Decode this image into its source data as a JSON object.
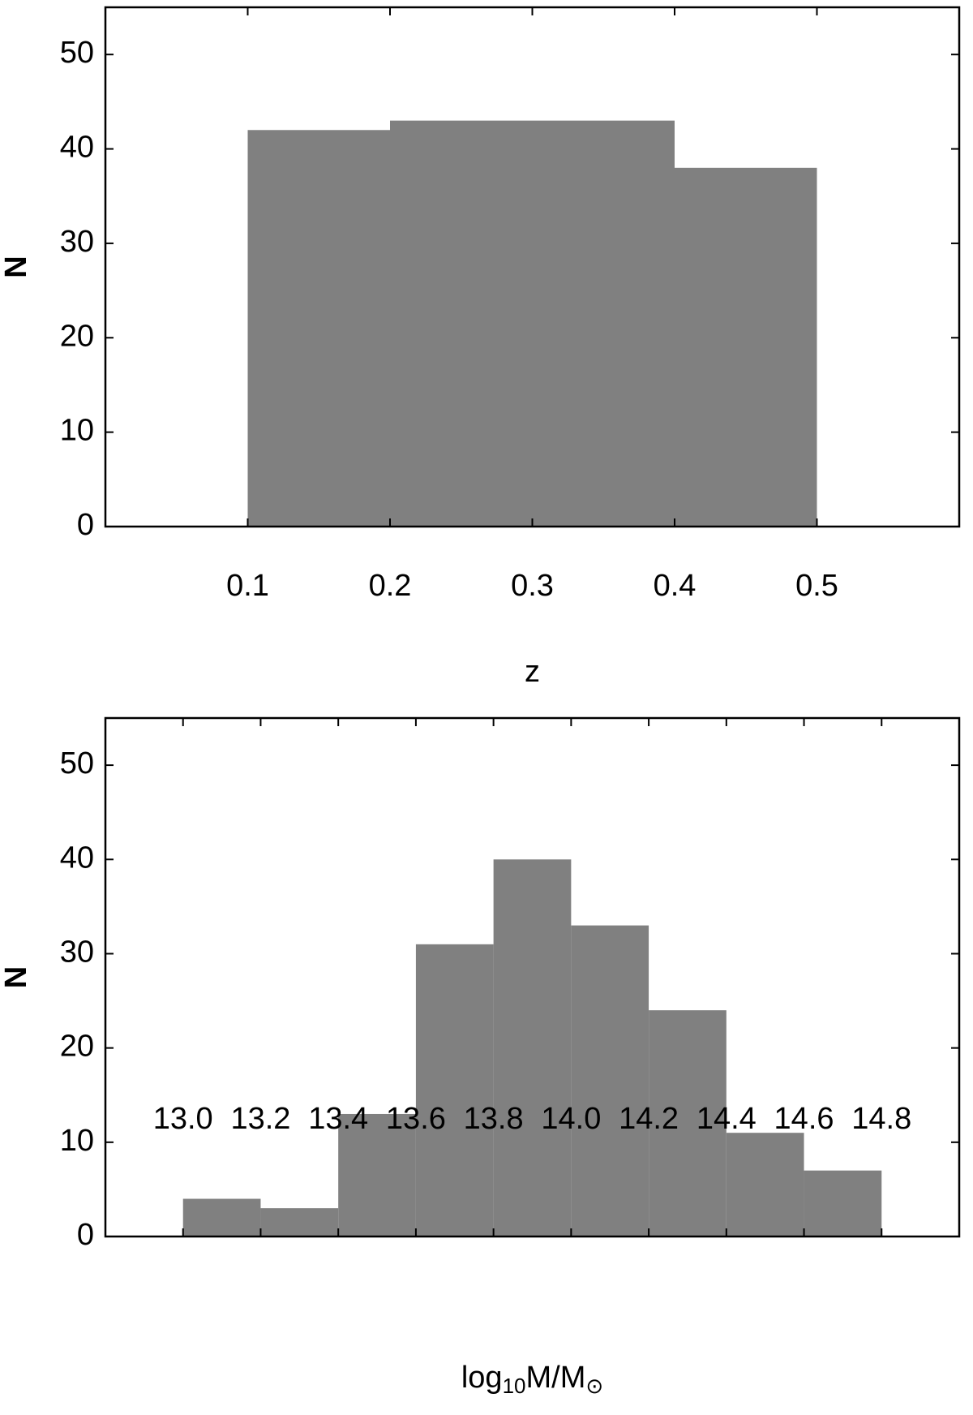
{
  "chart_data": [
    {
      "type": "histogram",
      "xlabel": [
        "z"
      ],
      "ylabel": "N",
      "bins": [
        0.1,
        0.2,
        0.3,
        0.4,
        0.5
      ],
      "values": [
        42,
        43,
        43,
        38
      ],
      "color": "#808080",
      "xlim": [
        0,
        0.6
      ],
      "xticks": [
        0.1,
        0.2,
        0.3,
        0.4,
        0.5
      ],
      "ylim": [
        0,
        55
      ],
      "yticks": [
        0,
        10,
        20,
        30,
        40,
        50
      ]
    },
    {
      "type": "histogram",
      "xlabel": [
        "log",
        "10",
        "M/M",
        "⊙"
      ],
      "ylabel": "N",
      "bins": [
        13.0,
        13.2,
        13.4,
        13.6,
        13.8,
        14.0,
        14.2,
        14.4,
        14.6,
        14.8
      ],
      "values": [
        4,
        3,
        13,
        31,
        40,
        33,
        24,
        11,
        7
      ],
      "color": "#808080",
      "xlim": [
        12.8,
        15.0
      ],
      "xticks": [
        {
          "value": 13.0,
          "label": "13.0"
        },
        {
          "value": 13.2,
          "label": "13.2"
        },
        {
          "value": 13.4,
          "label": "13.4"
        },
        {
          "value": 13.6,
          "label": "13.6"
        },
        {
          "value": 13.8,
          "label": "13.8"
        },
        {
          "value": 14.0,
          "label": "14.0"
        },
        {
          "value": 14.2,
          "label": "14.2"
        },
        {
          "value": 14.4,
          "label": "14.4"
        },
        {
          "value": 14.6,
          "label": "14.6"
        },
        {
          "value": 14.8,
          "label": "14.8"
        }
      ],
      "ylim": [
        0,
        55
      ],
      "yticks": [
        0,
        10,
        20,
        30,
        40,
        50
      ]
    }
  ]
}
